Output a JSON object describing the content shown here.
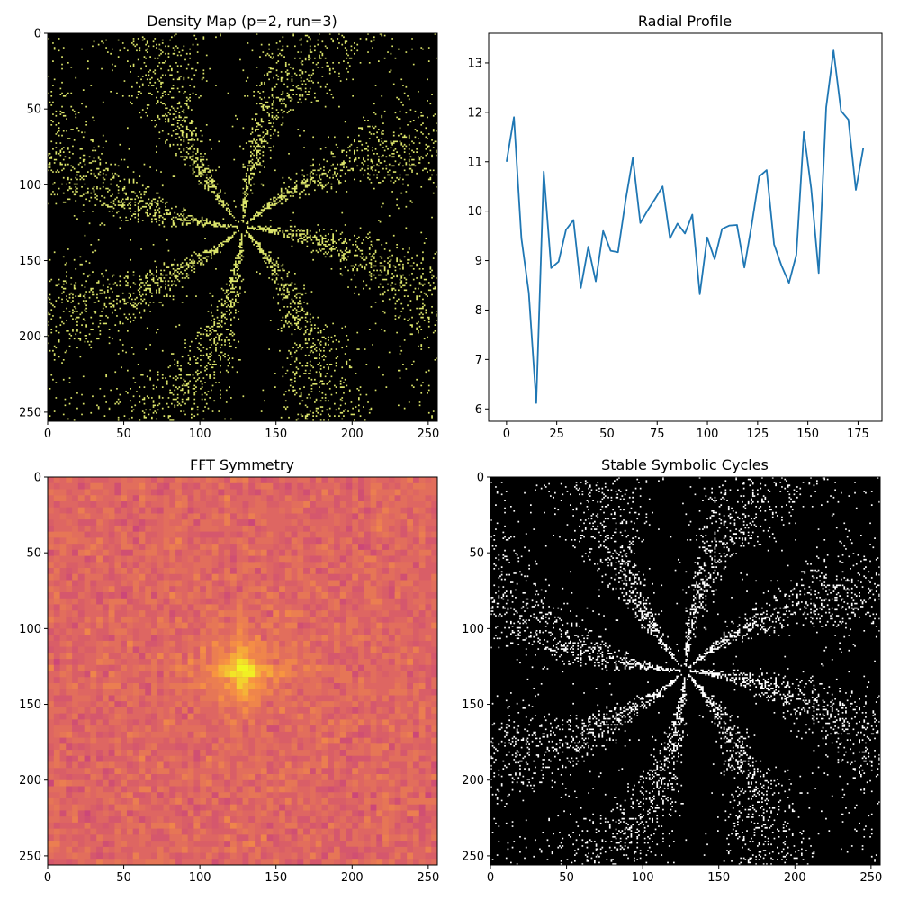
{
  "chart_data": [
    {
      "type": "heatmap",
      "title": "Density Map (p=2, run=3)",
      "colormap": "viridis",
      "background": "#000000",
      "point_color": "#dbe46a",
      "xlim": [
        0,
        256
      ],
      "ylim": [
        256,
        0
      ],
      "xticks": [
        0,
        50,
        100,
        150,
        200,
        250
      ],
      "yticks": [
        0,
        50,
        100,
        150,
        200,
        250
      ],
      "center": [
        128,
        128
      ],
      "arms": 8
    },
    {
      "type": "line",
      "title": "Radial Profile",
      "line_color": "#1f77b4",
      "xlim": [
        -8.9,
        186.9
      ],
      "ylim": [
        5.75,
        13.6
      ],
      "xticks": [
        0,
        25,
        50,
        75,
        100,
        125,
        150,
        175
      ],
      "yticks": [
        6,
        7,
        8,
        9,
        10,
        11,
        12,
        13
      ],
      "x": [
        0,
        3.7,
        7.4,
        11.1,
        14.8,
        18.5,
        22.2,
        25.9,
        29.6,
        33.3,
        37,
        40.7,
        44.4,
        48.1,
        51.8,
        55.5,
        59.2,
        62.9,
        66.6,
        70.3,
        74,
        77.7,
        81.4,
        85.1,
        88.8,
        92.5,
        96.2,
        99.9,
        103.6,
        107.3,
        111,
        114.7,
        118.4,
        122.1,
        125.8,
        129.5,
        133.2,
        136.9,
        140.6,
        144.3,
        148,
        151.7,
        155.4,
        159.1,
        162.8,
        166.5,
        170.2,
        173.9,
        177.6
      ],
      "y": [
        11.0,
        11.9,
        9.45,
        8.35,
        6.12,
        10.8,
        8.85,
        8.98,
        9.62,
        9.82,
        8.45,
        9.28,
        8.58,
        9.6,
        9.2,
        9.17,
        10.2,
        11.08,
        9.76,
        10.02,
        10.25,
        10.5,
        9.45,
        9.75,
        9.55,
        9.93,
        8.32,
        9.47,
        9.03,
        9.64,
        9.71,
        9.72,
        8.86,
        9.74,
        10.7,
        10.83,
        9.33,
        8.9,
        8.55,
        9.12,
        11.6,
        10.45,
        8.75,
        12.1,
        13.25,
        12.03,
        11.85,
        10.43,
        11.27
      ]
    },
    {
      "type": "heatmap",
      "title": "FFT Symmetry",
      "colormap": "plasma",
      "xlim": [
        0,
        256
      ],
      "ylim": [
        256,
        0
      ],
      "xticks": [
        0,
        50,
        100,
        150,
        200,
        250
      ],
      "yticks": [
        0,
        50,
        100,
        150,
        200,
        250
      ],
      "peak": [
        128,
        128
      ]
    },
    {
      "type": "heatmap",
      "title": "Stable Symbolic Cycles",
      "colormap": "gray",
      "background": "#000000",
      "point_color": "#ffffff",
      "xlim": [
        0,
        256
      ],
      "ylim": [
        256,
        0
      ],
      "xticks": [
        0,
        50,
        100,
        150,
        200,
        250
      ],
      "yticks": [
        0,
        50,
        100,
        150,
        200,
        250
      ],
      "center": [
        128,
        128
      ],
      "arms": 8
    }
  ]
}
